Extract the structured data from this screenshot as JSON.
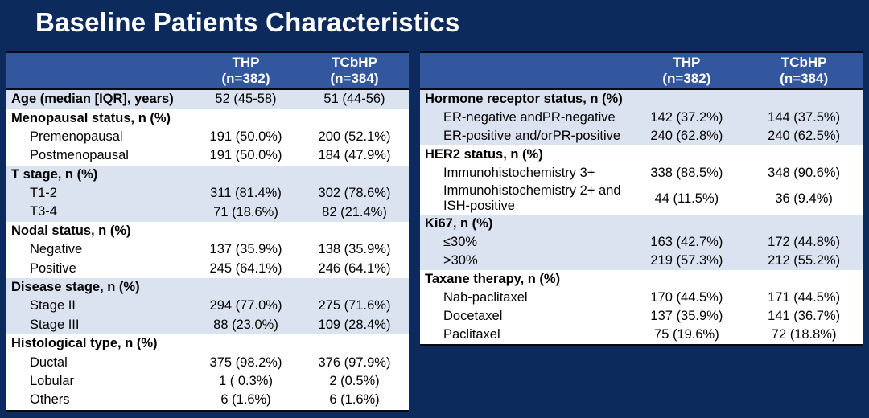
{
  "title": "Baseline Patients Characteristics",
  "colors": {
    "background": "#0d2a5c",
    "header_bg": "#33579f",
    "header_text": "#ffffff",
    "row_light_bg": "#dbe3f1",
    "row_white_bg": "#ffffff",
    "body_text": "#000000",
    "border": "#050a14",
    "title_text": "#ffffff"
  },
  "tables": [
    {
      "name": "left-baseline-table",
      "columns": [
        {
          "title": "",
          "subtitle": ""
        },
        {
          "title": "THP",
          "subtitle": "(n=382)"
        },
        {
          "title": "TCbHP",
          "subtitle": "(n=384)"
        }
      ],
      "rows": [
        {
          "label": "Age (median [IQR], years)",
          "bold": true,
          "indent": false,
          "thp": "52 (45-58)",
          "tcbhp": "51 (44-56)",
          "shade": "light"
        },
        {
          "label": "Menopausal status, n (%)",
          "bold": true,
          "indent": false,
          "thp": "",
          "tcbhp": "",
          "shade": "white"
        },
        {
          "label": "Premenopausal",
          "bold": false,
          "indent": true,
          "thp": "191 (50.0%)",
          "tcbhp": "200 (52.1%)",
          "shade": "white"
        },
        {
          "label": "Postmenopausal",
          "bold": false,
          "indent": true,
          "thp": "191 (50.0%)",
          "tcbhp": "184 (47.9%)",
          "shade": "white"
        },
        {
          "label": "T stage, n (%)",
          "bold": true,
          "indent": false,
          "thp": "",
          "tcbhp": "",
          "shade": "light"
        },
        {
          "label": "T1-2",
          "bold": false,
          "indent": true,
          "thp": "311 (81.4%)",
          "tcbhp": "302 (78.6%)",
          "shade": "light"
        },
        {
          "label": "T3-4",
          "bold": false,
          "indent": true,
          "thp": "71 (18.6%)",
          "tcbhp": "82 (21.4%)",
          "shade": "light"
        },
        {
          "label": "Nodal status, n (%)",
          "bold": true,
          "indent": false,
          "thp": "",
          "tcbhp": "",
          "shade": "white"
        },
        {
          "label": "Negative",
          "bold": false,
          "indent": true,
          "thp": "137 (35.9%)",
          "tcbhp": "138 (35.9%)",
          "shade": "white"
        },
        {
          "label": "Positive",
          "bold": false,
          "indent": true,
          "thp": "245 (64.1%)",
          "tcbhp": "246 (64.1%)",
          "shade": "white"
        },
        {
          "label": "Disease stage, n (%)",
          "bold": true,
          "indent": false,
          "thp": "",
          "tcbhp": "",
          "shade": "light"
        },
        {
          "label": "Stage II",
          "bold": false,
          "indent": true,
          "thp": "294 (77.0%)",
          "tcbhp": "275 (71.6%)",
          "shade": "light"
        },
        {
          "label": "Stage III",
          "bold": false,
          "indent": true,
          "thp": "88 (23.0%)",
          "tcbhp": "109 (28.4%)",
          "shade": "light"
        },
        {
          "label": "Histological type, n (%)",
          "bold": true,
          "indent": false,
          "thp": "",
          "tcbhp": "",
          "shade": "white"
        },
        {
          "label": "Ductal",
          "bold": false,
          "indent": true,
          "thp": "375 (98.2%)",
          "tcbhp": "376 (97.9%)",
          "shade": "white"
        },
        {
          "label": "Lobular",
          "bold": false,
          "indent": true,
          "thp": "1 ( 0.3%)",
          "tcbhp": "2 (0.5%)",
          "shade": "white"
        },
        {
          "label": "Others",
          "bold": false,
          "indent": true,
          "thp": "6 (1.6%)",
          "tcbhp": "6 (1.6%)",
          "shade": "white"
        }
      ]
    },
    {
      "name": "right-baseline-table",
      "columns": [
        {
          "title": "",
          "subtitle": ""
        },
        {
          "title": "THP",
          "subtitle": "(n=382)"
        },
        {
          "title": "TCbHP",
          "subtitle": "(n=384)"
        }
      ],
      "rows": [
        {
          "label": "Hormone receptor status, n (%)",
          "bold": true,
          "indent": false,
          "thp": "",
          "tcbhp": "",
          "shade": "light"
        },
        {
          "label": "ER-negative andPR-negative",
          "bold": false,
          "indent": true,
          "thp": "142 (37.2%)",
          "tcbhp": "144 (37.5%)",
          "shade": "light"
        },
        {
          "label": "ER-positive and/orPR-positive",
          "bold": false,
          "indent": true,
          "thp": "240 (62.8%)",
          "tcbhp": "240 (62.5%)",
          "shade": "light"
        },
        {
          "label": "HER2 status, n (%)",
          "bold": true,
          "indent": false,
          "thp": "",
          "tcbhp": "",
          "shade": "white"
        },
        {
          "label": "Immunohistochemistry 3+",
          "bold": false,
          "indent": true,
          "thp": "338 (88.5%)",
          "tcbhp": "348 (90.6%)",
          "shade": "white"
        },
        {
          "label": "Immunohistochemistry 2+ and ISH-positive",
          "bold": false,
          "indent": true,
          "thp": "44 (11.5%)",
          "tcbhp": "36 (9.4%)",
          "shade": "white"
        },
        {
          "label": "Ki67, n (%)",
          "bold": true,
          "indent": false,
          "thp": "",
          "tcbhp": "",
          "shade": "light"
        },
        {
          "label": "≤30%",
          "bold": false,
          "indent": true,
          "thp": "163 (42.7%)",
          "tcbhp": "172 (44.8%)",
          "shade": "light"
        },
        {
          "label": ">30%",
          "bold": false,
          "indent": true,
          "thp": "219 (57.3%)",
          "tcbhp": "212 (55.2%)",
          "shade": "light"
        },
        {
          "label": "Taxane therapy, n (%)",
          "bold": true,
          "indent": false,
          "thp": "",
          "tcbhp": "",
          "shade": "white"
        },
        {
          "label": "Nab-paclitaxel",
          "bold": false,
          "indent": true,
          "thp": "170 (44.5%)",
          "tcbhp": "171 (44.5%)",
          "shade": "white"
        },
        {
          "label": "Docetaxel",
          "bold": false,
          "indent": true,
          "thp": "137 (35.9%)",
          "tcbhp": "141 (36.7%)",
          "shade": "white"
        },
        {
          "label": "Paclitaxel",
          "bold": false,
          "indent": true,
          "thp": "75 (19.6%)",
          "tcbhp": "72 (18.8%)",
          "shade": "white"
        }
      ]
    }
  ]
}
